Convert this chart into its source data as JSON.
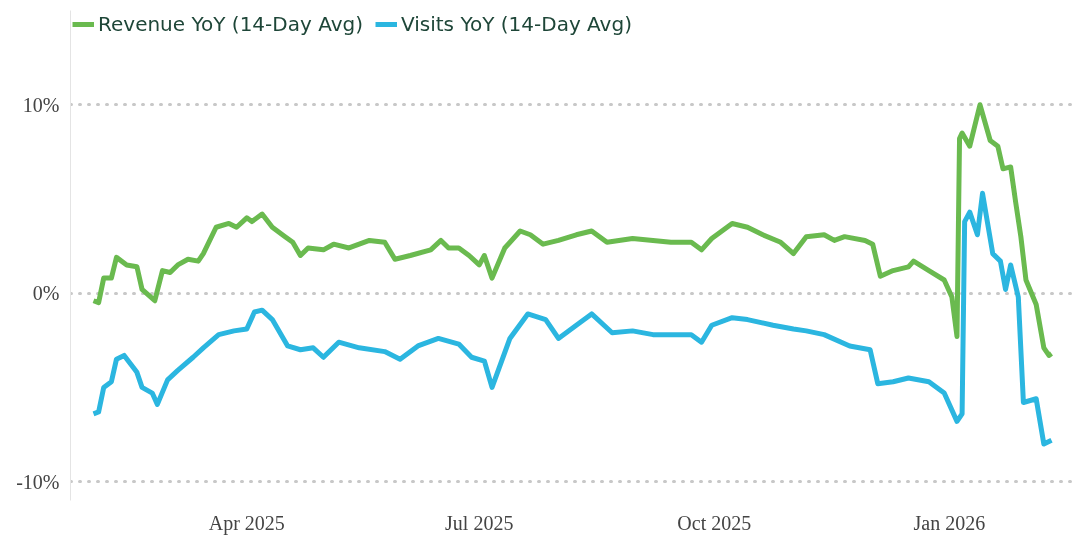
{
  "chart_data": {
    "type": "line",
    "xlim": [
      "2025-01-22",
      "2026-02-19"
    ],
    "xticks": [
      {
        "value": "2025-04-01",
        "label": "Apr 2025"
      },
      {
        "value": "2025-07-01",
        "label": "Jul 2025"
      },
      {
        "value": "2025-10-01",
        "label": "Oct 2025"
      },
      {
        "value": "2026-01-01",
        "label": "Jan 2026"
      }
    ],
    "ylim": [
      -11,
      15
    ],
    "yticks": [
      {
        "value": -10,
        "label": "-10%"
      },
      {
        "value": 0,
        "label": "0%"
      },
      {
        "value": 10,
        "label": "10%"
      }
    ],
    "grid": "y",
    "legend": "top left",
    "marker": "none",
    "line_style": "solid",
    "series": [
      {
        "name": "Revenue YoY (14-Day Avg)",
        "color": "#6aba4f",
        "x": [
          "2025-01-31",
          "2025-02-02",
          "2025-02-04",
          "2025-02-07",
          "2025-02-09",
          "2025-02-13",
          "2025-02-17",
          "2025-02-19",
          "2025-02-24",
          "2025-02-27",
          "2025-03-02",
          "2025-03-05",
          "2025-03-09",
          "2025-03-13",
          "2025-03-15",
          "2025-03-20",
          "2025-03-25",
          "2025-03-28",
          "2025-04-01",
          "2025-04-03",
          "2025-04-07",
          "2025-04-11",
          "2025-04-16",
          "2025-04-19",
          "2025-04-22",
          "2025-04-25",
          "2025-05-01",
          "2025-05-05",
          "2025-05-11",
          "2025-05-19",
          "2025-05-25",
          "2025-05-29",
          "2025-06-04",
          "2025-06-12",
          "2025-06-16",
          "2025-06-19",
          "2025-06-23",
          "2025-06-27",
          "2025-07-01",
          "2025-07-03",
          "2025-07-06",
          "2025-07-11",
          "2025-07-17",
          "2025-07-21",
          "2025-07-26",
          "2025-08-01",
          "2025-08-08",
          "2025-08-14",
          "2025-08-20",
          "2025-08-30",
          "2025-09-07",
          "2025-09-14",
          "2025-09-22",
          "2025-09-26",
          "2025-09-30",
          "2025-10-08",
          "2025-10-14",
          "2025-10-20",
          "2025-10-27",
          "2025-11-01",
          "2025-11-06",
          "2025-11-13",
          "2025-11-17",
          "2025-11-21",
          "2025-11-29",
          "2025-12-02",
          "2025-12-05",
          "2025-12-10",
          "2025-12-16",
          "2025-12-18",
          "2025-12-24",
          "2025-12-30",
          "2026-01-02",
          "2026-01-04",
          "2026-01-05",
          "2026-01-06",
          "2026-01-09",
          "2026-01-13",
          "2026-01-17",
          "2026-01-20",
          "2026-01-22",
          "2026-01-25",
          "2026-01-27",
          "2026-01-29",
          "2026-01-31",
          "2026-02-04",
          "2026-02-07",
          "2026-02-09",
          "2026-02-10"
        ],
        "values": [
          -0.4,
          -0.5,
          0.8,
          0.8,
          1.9,
          1.5,
          1.4,
          0.2,
          -0.4,
          1.2,
          1.1,
          1.5,
          1.8,
          1.7,
          2.1,
          3.5,
          3.7,
          3.5,
          4.0,
          3.8,
          4.2,
          3.5,
          3.0,
          2.7,
          2.0,
          2.4,
          2.3,
          2.6,
          2.4,
          2.8,
          2.7,
          1.8,
          2.0,
          2.3,
          2.8,
          2.4,
          2.4,
          2.0,
          1.5,
          2.0,
          0.8,
          2.4,
          3.3,
          3.1,
          2.6,
          2.8,
          3.1,
          3.3,
          2.7,
          2.9,
          2.8,
          2.7,
          2.7,
          2.3,
          2.9,
          3.7,
          3.5,
          3.1,
          2.7,
          2.1,
          3.0,
          3.1,
          2.8,
          3.0,
          2.8,
          2.6,
          0.9,
          1.2,
          1.4,
          1.7,
          1.2,
          0.7,
          -0.2,
          -2.3,
          8.2,
          8.5,
          7.8,
          10.0,
          8.1,
          7.8,
          6.6,
          6.7,
          4.8,
          3.0,
          0.7,
          -0.6,
          -2.9,
          -3.3,
          -3.2
        ]
      },
      {
        "name": "Visits YoY (14-Day Avg)",
        "color": "#2bb6e0",
        "x": [
          "2025-01-31",
          "2025-02-02",
          "2025-02-04",
          "2025-02-07",
          "2025-02-09",
          "2025-02-12",
          "2025-02-17",
          "2025-02-19",
          "2025-02-23",
          "2025-02-25",
          "2025-03-01",
          "2025-03-05",
          "2025-03-11",
          "2025-03-15",
          "2025-03-21",
          "2025-03-27",
          "2025-04-01",
          "2025-04-04",
          "2025-04-07",
          "2025-04-11",
          "2025-04-17",
          "2025-04-22",
          "2025-04-27",
          "2025-05-01",
          "2025-05-07",
          "2025-05-15",
          "2025-05-25",
          "2025-05-31",
          "2025-06-07",
          "2025-06-15",
          "2025-06-23",
          "2025-06-28",
          "2025-07-03",
          "2025-07-06",
          "2025-07-13",
          "2025-07-20",
          "2025-07-27",
          "2025-08-01",
          "2025-08-08",
          "2025-08-14",
          "2025-08-22",
          "2025-08-30",
          "2025-09-07",
          "2025-09-14",
          "2025-09-22",
          "2025-09-26",
          "2025-09-30",
          "2025-10-08",
          "2025-10-14",
          "2025-10-24",
          "2025-11-01",
          "2025-11-06",
          "2025-11-13",
          "2025-11-23",
          "2025-12-01",
          "2025-12-04",
          "2025-12-10",
          "2025-12-16",
          "2025-12-24",
          "2025-12-30",
          "2026-01-04",
          "2026-01-06",
          "2026-01-07",
          "2026-01-09",
          "2026-01-12",
          "2026-01-14",
          "2026-01-18",
          "2026-01-21",
          "2026-01-23",
          "2026-01-25",
          "2026-01-28",
          "2026-01-30",
          "2026-02-04",
          "2026-02-07",
          "2026-02-10"
        ],
        "values": [
          -6.4,
          -6.3,
          -5.0,
          -4.7,
          -3.5,
          -3.3,
          -4.2,
          -5.0,
          -5.3,
          -5.9,
          -4.6,
          -4.1,
          -3.4,
          -2.9,
          -2.2,
          -2.0,
          -1.9,
          -1.0,
          -0.9,
          -1.4,
          -2.8,
          -3.0,
          -2.9,
          -3.4,
          -2.6,
          -2.9,
          -3.1,
          -3.5,
          -2.8,
          -2.4,
          -2.7,
          -3.4,
          -3.6,
          -5.0,
          -2.4,
          -1.1,
          -1.4,
          -2.4,
          -1.7,
          -1.1,
          -2.1,
          -2.0,
          -2.2,
          -2.2,
          -2.2,
          -2.6,
          -1.7,
          -1.3,
          -1.4,
          -1.7,
          -1.9,
          -2.0,
          -2.2,
          -2.8,
          -3.0,
          -4.8,
          -4.7,
          -4.5,
          -4.7,
          -5.3,
          -6.8,
          -6.4,
          3.8,
          4.3,
          3.1,
          5.3,
          2.1,
          1.7,
          0.2,
          1.5,
          -0.2,
          -5.8,
          -5.6,
          -8.0,
          -7.8
        ]
      }
    ]
  }
}
